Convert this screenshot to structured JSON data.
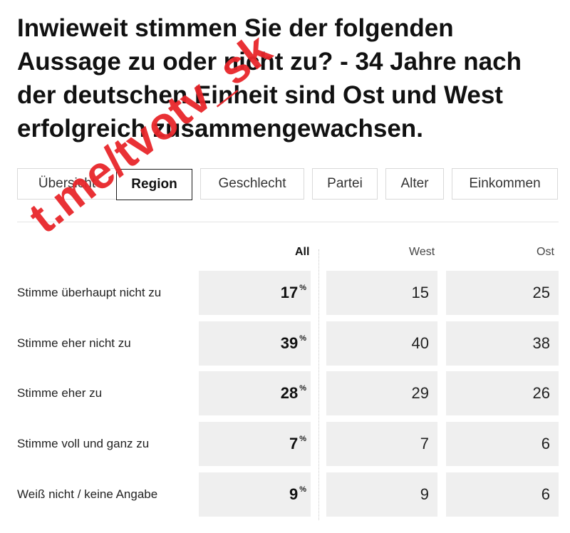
{
  "title": "Inwieweit stimmen Sie der folgenden Aussage zu oder nicht zu? - 34 Jahre nach der deutschen Einheit sind Ost und West erfolgreich zusammengewachsen.",
  "tabs": [
    {
      "label": "Übersicht",
      "active": false
    },
    {
      "label": "Region",
      "active": true
    },
    {
      "label": "Geschlecht",
      "active": false
    },
    {
      "label": "Partei",
      "active": false
    },
    {
      "label": "Alter",
      "active": false
    },
    {
      "label": "Einkommen",
      "active": false
    }
  ],
  "table": {
    "columns": [
      "All",
      "West",
      "Ost"
    ],
    "percent_sign": "%",
    "rows": [
      {
        "label": "Stimme überhaupt nicht zu",
        "all": "17",
        "west": "15",
        "ost": "25"
      },
      {
        "label": "Stimme eher nicht zu",
        "all": "39",
        "west": "40",
        "ost": "38"
      },
      {
        "label": "Stimme eher zu",
        "all": "28",
        "west": "29",
        "ost": "26"
      },
      {
        "label": "Stimme voll und ganz zu",
        "all": "7",
        "west": "7",
        "ost": "6"
      },
      {
        "label": "Weiß nicht / keine Angabe",
        "all": "9",
        "west": "9",
        "ost": "6"
      }
    ]
  },
  "watermark": "t.me/tvotv_sk",
  "colors": {
    "watermark": "#e8262b",
    "cell_bg": "#efefef",
    "text": "#111111"
  }
}
